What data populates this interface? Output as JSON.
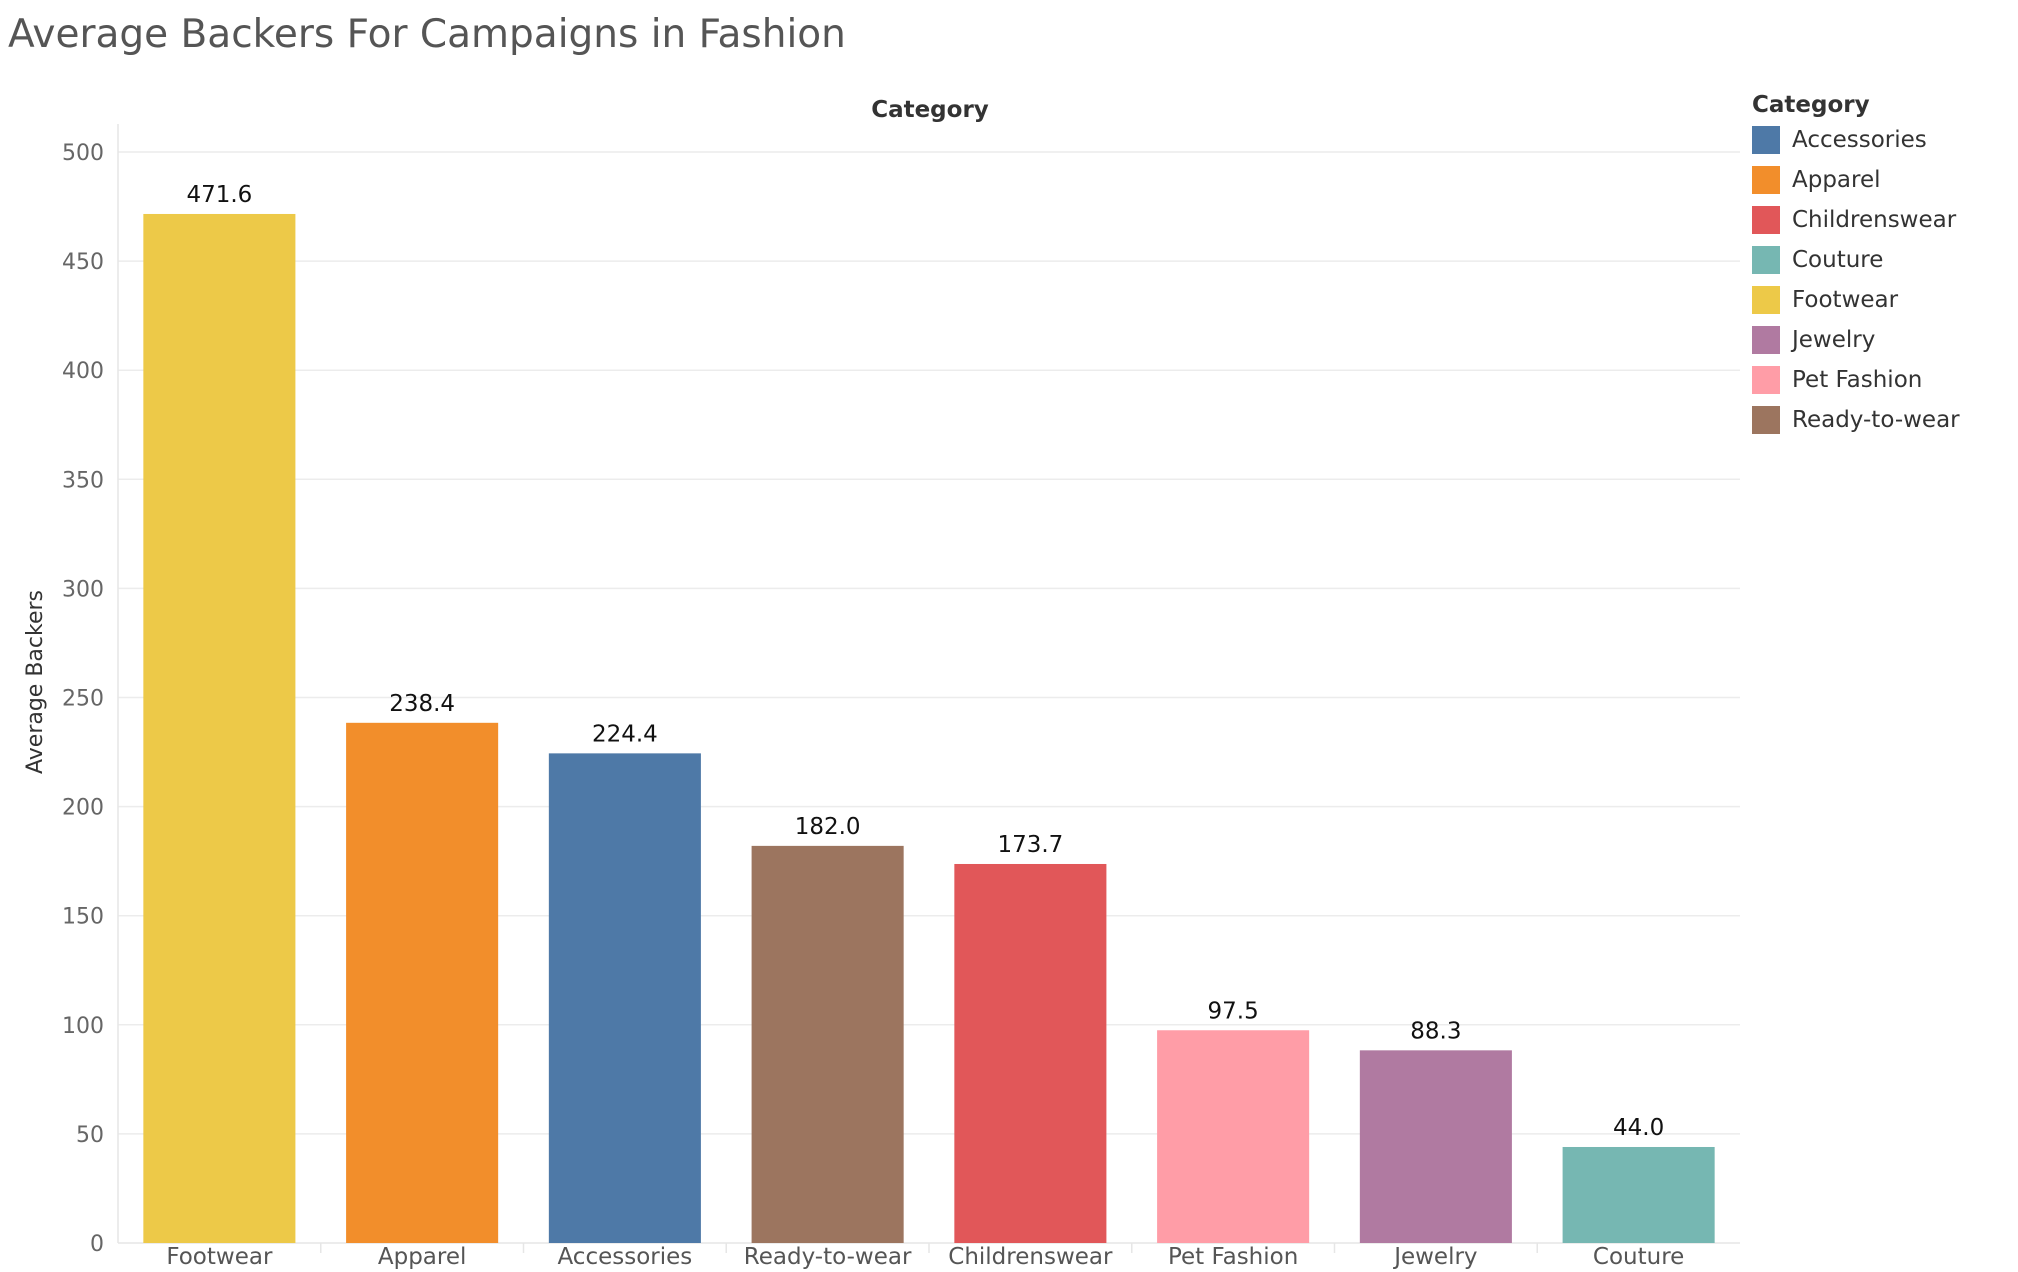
{
  "title": "Average Backers For Campaigns in Fashion",
  "chart_data": {
    "type": "bar",
    "column_header": "Category",
    "ylabel": "Average Backers",
    "ylim": [
      0,
      500
    ],
    "yticks": [
      0,
      50,
      100,
      150,
      200,
      250,
      300,
      350,
      400,
      450,
      500
    ],
    "grid": true,
    "categories": [
      "Footwear",
      "Apparel",
      "Accessories",
      "Ready-to-wear",
      "Childrenswear",
      "Pet Fashion",
      "Jewelry",
      "Couture"
    ],
    "values": [
      471.6,
      238.4,
      224.4,
      182.0,
      173.7,
      97.5,
      88.3,
      44.0
    ],
    "value_labels": [
      "471.6",
      "238.4",
      "224.4",
      "182.0",
      "173.7",
      "97.5",
      "88.3",
      "44.0"
    ],
    "bar_colors": [
      "#EDC948",
      "#F28E2B",
      "#4E79A7",
      "#9C755F",
      "#E15759",
      "#FF9DA7",
      "#B07AA1",
      "#76B7B2"
    ],
    "legend": {
      "title": "Category",
      "placement": "top-right",
      "items": [
        {
          "label": "Accessories",
          "color": "#4E79A7"
        },
        {
          "label": "Apparel",
          "color": "#F28E2B"
        },
        {
          "label": "Childrenswear",
          "color": "#E15759"
        },
        {
          "label": "Couture",
          "color": "#76B7B2"
        },
        {
          "label": "Footwear",
          "color": "#EDC948"
        },
        {
          "label": "Jewelry",
          "color": "#B07AA1"
        },
        {
          "label": "Pet Fashion",
          "color": "#FF9DA7"
        },
        {
          "label": "Ready-to-wear",
          "color": "#9C755F"
        }
      ]
    }
  }
}
